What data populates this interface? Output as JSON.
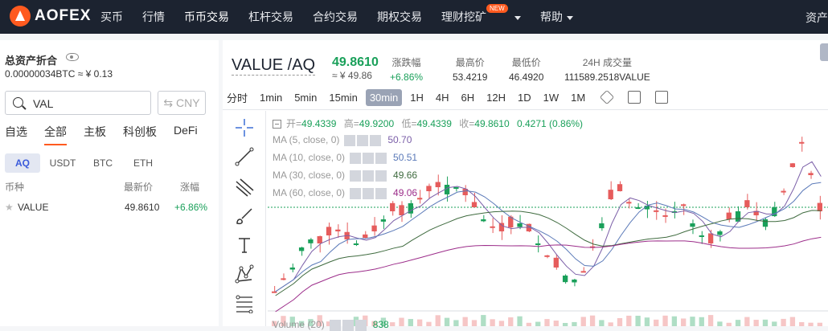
{
  "brand": "AOFEX",
  "nav": {
    "items": [
      "买币",
      "行情",
      "币币交易",
      "杠杆交易",
      "合约交易",
      "期权交易",
      "理财挖矿",
      "帮助"
    ],
    "badge": "NEW",
    "right": "资产"
  },
  "assets": {
    "title": "总资产折合",
    "value": "0.00000034BTC ≈ ¥ 0.13"
  },
  "search": {
    "value": "VAL",
    "currency_button": "⇆ CNY"
  },
  "categories": [
    "自选",
    "全部",
    "主板",
    "科创板",
    "DeFi"
  ],
  "quote_tabs": [
    "AQ",
    "USDT",
    "BTC",
    "ETH"
  ],
  "table": {
    "headers": [
      "币种",
      "最新价",
      "涨幅"
    ],
    "rows": [
      {
        "symbol": "VALUE",
        "price": "49.8610",
        "change": "+6.86%"
      }
    ]
  },
  "ticker": {
    "pair": "VALUE /AQ",
    "price": "49.8610",
    "price_cny": "≈ ¥ 49.86",
    "stats": [
      {
        "label": "涨跌幅",
        "value": "+6.86%"
      },
      {
        "label": "最高价",
        "value": "53.4219"
      },
      {
        "label": "最低价",
        "value": "46.4920"
      },
      {
        "label": "24H 成交量",
        "value": "111589.2518VALUE"
      }
    ]
  },
  "intervals": [
    "分时",
    "1min",
    "5min",
    "15min",
    "30min",
    "1H",
    "4H",
    "6H",
    "12H",
    "1D",
    "1W",
    "1M"
  ],
  "active_interval": "30min",
  "ohlc": {
    "open_label": "开=",
    "open": "49.4339",
    "high_label": "高=",
    "high": "49.9200",
    "low_label": "低=",
    "low": "49.4339",
    "close_label": "收=",
    "close": "49.8610",
    "change": "0.4271  (0.86%)"
  },
  "indicators": [
    {
      "label": "MA (5, close, 0)",
      "value": "50.70",
      "color": "#7b5fa8"
    },
    {
      "label": "MA (10, close, 0)",
      "value": "50.51",
      "color": "#5a79b8"
    },
    {
      "label": "MA (30, close, 0)",
      "value": "49.66",
      "color": "#3f6b3f"
    },
    {
      "label": "MA (60, close, 0)",
      "value": "49.06",
      "color": "#9c2d8a"
    }
  ],
  "volume": {
    "label": "Volume (20)",
    "value": "838"
  },
  "colors": {
    "up": "#1aa05a",
    "down": "#e65c5c",
    "accent": "#ff5a1f"
  }
}
